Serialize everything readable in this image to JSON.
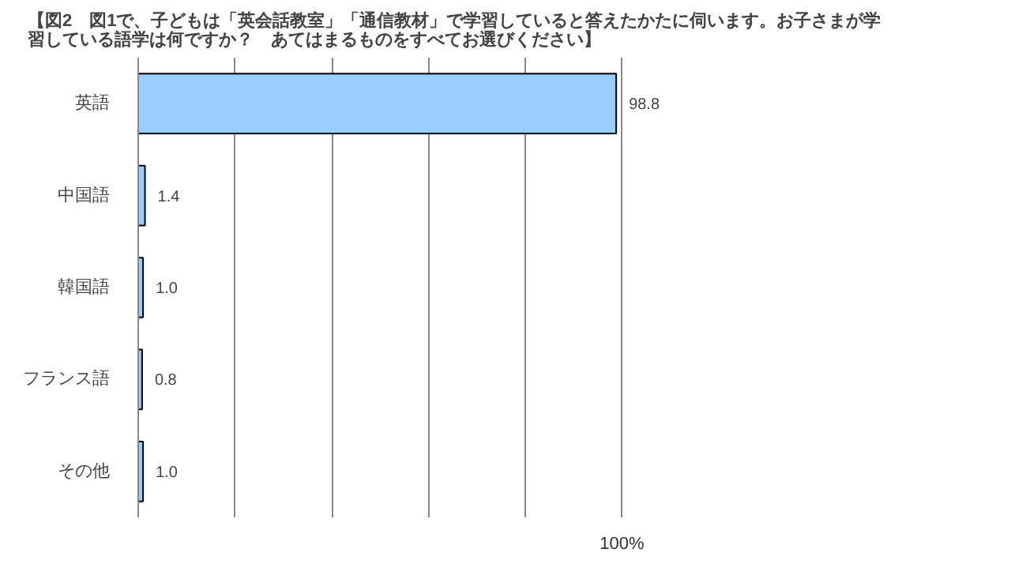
{
  "chart_data": {
    "type": "bar",
    "orientation": "horizontal",
    "title": "【図2　図1で、子どもは「英会話教室」「通信教材」で学習していると答えたかたに伺います。お子さまが学習している語学は何ですか？　あてはまるものをすべてお選びください】",
    "categories": [
      "英語",
      "中国語",
      "韓国語",
      "フランス語",
      "その他"
    ],
    "values": [
      98.8,
      1.4,
      1.0,
      0.8,
      1.0
    ],
    "color": "#99ccff",
    "value_labels": [
      "98.8",
      "1.4",
      "1.0",
      "0.8",
      "1.0"
    ],
    "xticks": [
      {
        "value": 0,
        "label": null
      },
      {
        "value": 20,
        "label": null
      },
      {
        "value": 40,
        "label": null
      },
      {
        "value": 60,
        "label": null
      },
      {
        "value": 80,
        "label": null
      },
      {
        "value": 100,
        "label": null
      }
    ],
    "annotations": [
      "100%"
    ],
    "grid": "x"
  }
}
